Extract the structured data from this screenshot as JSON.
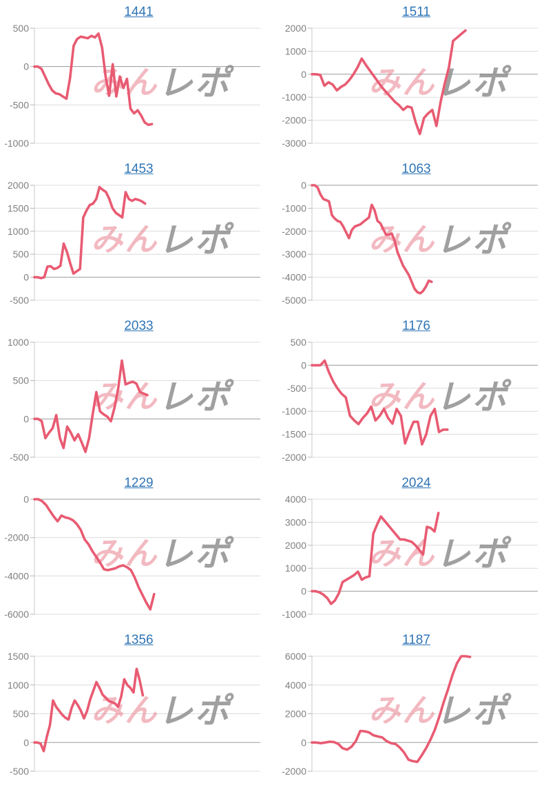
{
  "page": {
    "background": "#ffffff"
  },
  "watermark": {
    "pink_text": "みん",
    "gray_text": "レポ"
  },
  "colors": {
    "line": "#e85b72",
    "title_link": "#2e74b5",
    "gridline": "#dcdcdc",
    "zero_line": "#9a9a9a",
    "axis_line": "#c9c9c9",
    "tick_mark": "#b5b5b5",
    "tick_label": "#808080",
    "watermark_pink": "#e87f8e",
    "watermark_gray": "#8f8f8f"
  },
  "chart_data": [
    {
      "type": "line",
      "title": "1441",
      "ylim": [
        -1000,
        500
      ],
      "yticks": [
        500,
        0,
        -500,
        -1000
      ],
      "x_fraction": 0.52,
      "grid": true,
      "legend": "none",
      "values": [
        0,
        0,
        -30,
        -130,
        -230,
        -310,
        -350,
        -360,
        -390,
        -420,
        -150,
        270,
        360,
        390,
        380,
        370,
        400,
        380,
        430,
        250,
        -130,
        -380,
        30,
        -390,
        -130,
        -280,
        -160,
        -550,
        -610,
        -570,
        -640,
        -730,
        -760,
        -750
      ]
    },
    {
      "type": "line",
      "title": "1511",
      "ylim": [
        -3000,
        2000
      ],
      "yticks": [
        2000,
        1000,
        0,
        -1000,
        -2000,
        -3000
      ],
      "x_fraction": 0.68,
      "grid": true,
      "legend": "none",
      "values": [
        0,
        0,
        -30,
        -500,
        -350,
        -450,
        -700,
        -550,
        -450,
        -250,
        0,
        300,
        680,
        400,
        150,
        -100,
        -350,
        -600,
        -800,
        -1000,
        -1200,
        -1350,
        -1550,
        -1400,
        -1450,
        -2100,
        -2600,
        -1900,
        -1700,
        -1550,
        -2250,
        -1200,
        -400,
        300,
        1450,
        1600,
        1750,
        1900
      ]
    },
    {
      "type": "line",
      "title": "1453",
      "ylim": [
        -500,
        2000
      ],
      "yticks": [
        2000,
        1500,
        1000,
        500,
        0,
        -500
      ],
      "x_fraction": 0.49,
      "grid": true,
      "legend": "none",
      "values": [
        0,
        0,
        -20,
        0,
        230,
        240,
        180,
        200,
        250,
        730,
        550,
        300,
        80,
        130,
        180,
        1300,
        1450,
        1570,
        1600,
        1700,
        1960,
        1900,
        1850,
        1700,
        1500,
        1400,
        1350,
        1300,
        1850,
        1700,
        1660,
        1700,
        1680,
        1650,
        1600
      ]
    },
    {
      "type": "line",
      "title": "1063",
      "ylim": [
        -5000,
        0
      ],
      "yticks": [
        0,
        -1000,
        -2000,
        -3000,
        -4000,
        -5000
      ],
      "x_fraction": 0.53,
      "grid": true,
      "legend": "none",
      "values": [
        0,
        0,
        -100,
        -400,
        -600,
        -650,
        -700,
        -1300,
        -1450,
        -1550,
        -1600,
        -1800,
        -2050,
        -2300,
        -1950,
        -1800,
        -1750,
        -1700,
        -1600,
        -1500,
        -1400,
        -850,
        -1100,
        -1550,
        -1650,
        -1900,
        -2150,
        -2150,
        -2100,
        -2400,
        -2900,
        -3200,
        -3500,
        -3700,
        -3900,
        -4200,
        -4500,
        -4650,
        -4700,
        -4600,
        -4400,
        -4150,
        -4200
      ]
    },
    {
      "type": "line",
      "title": "2033",
      "ylim": [
        -500,
        1000
      ],
      "yticks": [
        1000,
        500,
        0,
        -500
      ],
      "x_fraction": 0.5,
      "grid": true,
      "legend": "none",
      "values": [
        0,
        0,
        -30,
        -250,
        -180,
        -120,
        50,
        -250,
        -380,
        -100,
        -180,
        -280,
        -200,
        -310,
        -430,
        -250,
        60,
        350,
        100,
        60,
        30,
        -30,
        150,
        400,
        760,
        450,
        470,
        485,
        460,
        350,
        330,
        310
      ]
    },
    {
      "type": "line",
      "title": "1176",
      "ylim": [
        -2000,
        500
      ],
      "yticks": [
        500,
        0,
        -500,
        -1000,
        -1500,
        -2000
      ],
      "x_fraction": 0.6,
      "grid": true,
      "legend": "none",
      "values": [
        0,
        0,
        0,
        100,
        -150,
        -350,
        -500,
        -620,
        -700,
        -1100,
        -1200,
        -1280,
        -1150,
        -1050,
        -900,
        -1200,
        -1100,
        -950,
        -1150,
        -1270,
        -950,
        -1100,
        -1700,
        -1450,
        -1230,
        -1230,
        -1720,
        -1500,
        -1100,
        -950,
        -1450,
        -1400,
        -1400
      ]
    },
    {
      "type": "line",
      "title": "1229",
      "ylim": [
        -6000,
        0
      ],
      "yticks": [
        0,
        -2000,
        -4000,
        -6000
      ],
      "x_fraction": 0.53,
      "grid": true,
      "legend": "none",
      "values": [
        0,
        0,
        -100,
        -300,
        -600,
        -900,
        -1150,
        -850,
        -950,
        -1000,
        -1100,
        -1300,
        -1600,
        -2100,
        -2350,
        -2700,
        -3000,
        -3300,
        -3650,
        -3700,
        -3650,
        -3600,
        -3500,
        -3450,
        -3550,
        -3700,
        -4100,
        -4600,
        -5000,
        -5400,
        -5750,
        -4950
      ]
    },
    {
      "type": "line",
      "title": "2024",
      "ylim": [
        -1000,
        4000
      ],
      "yticks": [
        4000,
        3000,
        2000,
        1000,
        0,
        -1000
      ],
      "x_fraction": 0.56,
      "grid": true,
      "legend": "none",
      "values": [
        0,
        0,
        -50,
        -150,
        -300,
        -550,
        -400,
        -100,
        400,
        500,
        600,
        700,
        850,
        500,
        600,
        650,
        2500,
        2900,
        3250,
        3050,
        2850,
        2650,
        2450,
        2250,
        2250,
        2200,
        2150,
        2000,
        1800,
        1600,
        2800,
        2750,
        2600,
        3400
      ]
    },
    {
      "type": "line",
      "title": "1356",
      "ylim": [
        -500,
        1500
      ],
      "yticks": [
        1500,
        1000,
        500,
        0,
        -500
      ],
      "x_fraction": 0.48,
      "grid": true,
      "legend": "none",
      "values": [
        0,
        0,
        -20,
        -150,
        100,
        300,
        730,
        620,
        550,
        480,
        430,
        400,
        600,
        730,
        650,
        550,
        420,
        550,
        750,
        900,
        1050,
        950,
        830,
        780,
        720,
        700,
        680,
        620,
        800,
        1100,
        1000,
        950,
        870,
        1280,
        1080,
        820
      ]
    },
    {
      "type": "line",
      "title": "1187",
      "ylim": [
        -2000,
        6000
      ],
      "yticks": [
        6000,
        4000,
        2000,
        0,
        -2000
      ],
      "x_fraction": 0.7,
      "grid": true,
      "legend": "none",
      "values": [
        0,
        0,
        -50,
        0,
        50,
        30,
        -100,
        -400,
        -500,
        -300,
        100,
        800,
        780,
        700,
        500,
        420,
        350,
        100,
        -50,
        -100,
        -350,
        -700,
        -1200,
        -1300,
        -1350,
        -900,
        -400,
        200,
        900,
        1800,
        2800,
        3700,
        4700,
        5500,
        6000,
        6000,
        5950
      ]
    }
  ]
}
